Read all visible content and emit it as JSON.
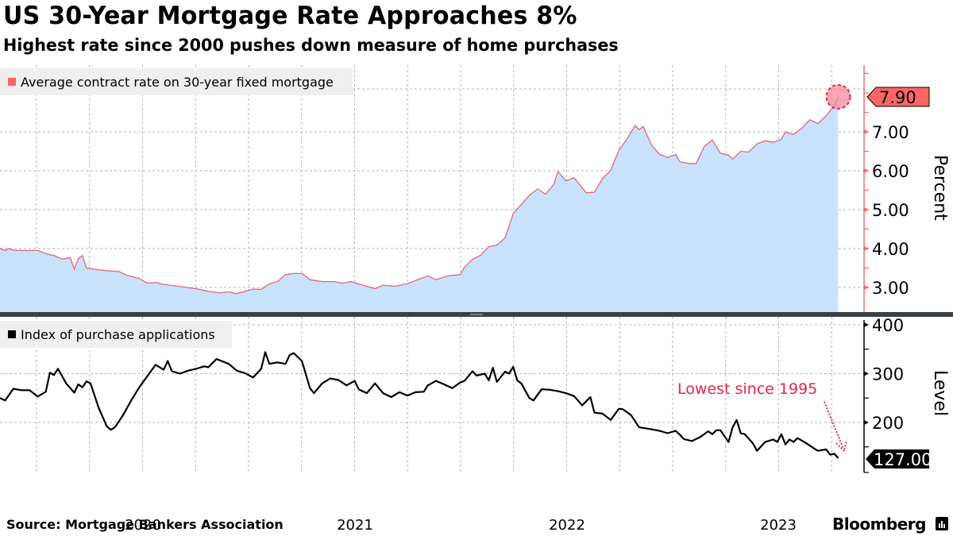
{
  "header": {
    "title": "US 30-Year Mortgage Rate Approaches 8%",
    "subtitle": "Highest rate since 2000 pushes down measure of home purchases"
  },
  "footer": {
    "source": "Source: Mortgage Bankers Association",
    "brand": "Bloomberg"
  },
  "colors": {
    "rate_line": "#e5647a",
    "rate_fill": "#c9e2fb",
    "rate_axis": "#f26b6b",
    "rate_badge": "#fd6565",
    "highlight_circle": "#f78a9c",
    "index_line": "#000000",
    "annotation": "#e8254e"
  },
  "chart_data": [
    {
      "type": "area",
      "title": "Average contract rate on 30-year fixed mortgage",
      "legend": {
        "label": "Average contract rate on 30-year fixed mortgage",
        "placement": "top-left"
      },
      "ylabel": "Percent",
      "ylim": [
        2.4,
        8.6
      ],
      "yticks": [
        "3.00",
        "4.00",
        "5.00",
        "6.00",
        "7.00"
      ],
      "grid": true,
      "x_start": "2019-11",
      "x_end": "2023-10",
      "frequency": "weekly",
      "xticks": [
        "2020",
        "2021",
        "2022",
        "2023"
      ],
      "last_value": 7.9,
      "last_value_label": "7.90",
      "anchors": [
        [
          "2019-11-01",
          4.0
        ],
        [
          "2019-11-08",
          3.95
        ],
        [
          "2019-11-15",
          4.0
        ],
        [
          "2019-11-22",
          3.96
        ],
        [
          "2019-12-06",
          3.95
        ],
        [
          "2019-12-20",
          3.95
        ],
        [
          "2020-01-03",
          3.95
        ],
        [
          "2020-01-17",
          3.87
        ],
        [
          "2020-01-31",
          3.82
        ],
        [
          "2020-02-14",
          3.73
        ],
        [
          "2020-02-28",
          3.77
        ],
        [
          "2020-03-06",
          3.47
        ],
        [
          "2020-03-13",
          3.74
        ],
        [
          "2020-03-20",
          3.82
        ],
        [
          "2020-03-27",
          3.5
        ],
        [
          "2020-04-10",
          3.47
        ],
        [
          "2020-05-01",
          3.43
        ],
        [
          "2020-05-22",
          3.41
        ],
        [
          "2020-06-05",
          3.31
        ],
        [
          "2020-06-26",
          3.23
        ],
        [
          "2020-07-10",
          3.11
        ],
        [
          "2020-07-24",
          3.13
        ],
        [
          "2020-08-07",
          3.08
        ],
        [
          "2020-08-28",
          3.04
        ],
        [
          "2020-09-11",
          3.01
        ],
        [
          "2020-10-02",
          2.97
        ],
        [
          "2020-10-23",
          2.9
        ],
        [
          "2020-11-13",
          2.86
        ],
        [
          "2020-11-27",
          2.89
        ],
        [
          "2020-12-11",
          2.84
        ],
        [
          "2020-12-25",
          2.9
        ],
        [
          "2021-01-08",
          2.96
        ],
        [
          "2021-01-22",
          2.95
        ],
        [
          "2021-02-05",
          3.09
        ],
        [
          "2021-02-19",
          3.15
        ],
        [
          "2021-03-05",
          3.33
        ],
        [
          "2021-03-19",
          3.36
        ],
        [
          "2021-04-02",
          3.36
        ],
        [
          "2021-04-16",
          3.2
        ],
        [
          "2021-05-07",
          3.15
        ],
        [
          "2021-05-28",
          3.15
        ],
        [
          "2021-06-11",
          3.11
        ],
        [
          "2021-06-25",
          3.15
        ],
        [
          "2021-07-09",
          3.09
        ],
        [
          "2021-07-23",
          3.03
        ],
        [
          "2021-08-06",
          2.97
        ],
        [
          "2021-08-20",
          3.06
        ],
        [
          "2021-09-10",
          3.03
        ],
        [
          "2021-10-01",
          3.1
        ],
        [
          "2021-10-22",
          3.22
        ],
        [
          "2021-11-05",
          3.3
        ],
        [
          "2021-11-19",
          3.2
        ],
        [
          "2021-12-10",
          3.3
        ],
        [
          "2021-12-31",
          3.33
        ],
        [
          "2022-01-07",
          3.52
        ],
        [
          "2022-01-21",
          3.72
        ],
        [
          "2022-02-04",
          3.83
        ],
        [
          "2022-02-18",
          4.05
        ],
        [
          "2022-03-04",
          4.09
        ],
        [
          "2022-03-18",
          4.27
        ],
        [
          "2022-04-01",
          4.9
        ],
        [
          "2022-04-15",
          5.13
        ],
        [
          "2022-04-29",
          5.37
        ],
        [
          "2022-05-13",
          5.53
        ],
        [
          "2022-05-27",
          5.4
        ],
        [
          "2022-06-10",
          5.65
        ],
        [
          "2022-06-17",
          5.98
        ],
        [
          "2022-07-01",
          5.74
        ],
        [
          "2022-07-15",
          5.82
        ],
        [
          "2022-08-05",
          5.43
        ],
        [
          "2022-08-19",
          5.45
        ],
        [
          "2022-09-02",
          5.8
        ],
        [
          "2022-09-16",
          6.01
        ],
        [
          "2022-09-30",
          6.52
        ],
        [
          "2022-10-14",
          6.81
        ],
        [
          "2022-10-28",
          7.16
        ],
        [
          "2022-11-04",
          7.06
        ],
        [
          "2022-11-11",
          7.14
        ],
        [
          "2022-11-25",
          6.67
        ],
        [
          "2022-12-09",
          6.42
        ],
        [
          "2022-12-23",
          6.34
        ],
        [
          "2023-01-06",
          6.42
        ],
        [
          "2023-01-13",
          6.23
        ],
        [
          "2023-01-27",
          6.19
        ],
        [
          "2023-02-10",
          6.18
        ],
        [
          "2023-02-24",
          6.62
        ],
        [
          "2023-03-10",
          6.79
        ],
        [
          "2023-03-24",
          6.45
        ],
        [
          "2023-04-07",
          6.4
        ],
        [
          "2023-04-14",
          6.3
        ],
        [
          "2023-04-28",
          6.5
        ],
        [
          "2023-05-12",
          6.48
        ],
        [
          "2023-05-26",
          6.69
        ],
        [
          "2023-06-09",
          6.77
        ],
        [
          "2023-06-23",
          6.73
        ],
        [
          "2023-07-07",
          6.81
        ],
        [
          "2023-07-14",
          7.0
        ],
        [
          "2023-07-28",
          6.93
        ],
        [
          "2023-08-11",
          7.09
        ],
        [
          "2023-08-25",
          7.31
        ],
        [
          "2023-09-08",
          7.21
        ],
        [
          "2023-09-22",
          7.41
        ],
        [
          "2023-10-06",
          7.67
        ],
        [
          "2023-10-13",
          7.9
        ]
      ]
    },
    {
      "type": "line",
      "title": "Index of purchase applications",
      "legend": {
        "label": "Index of purchase applications",
        "placement": "top-left"
      },
      "ylabel": "Level",
      "ylim": [
        100,
        410
      ],
      "yticks": [
        "200",
        "300",
        "400"
      ],
      "grid": true,
      "x_start": "2019-11",
      "x_end": "2023-10",
      "frequency": "weekly",
      "xticks": [
        "2020",
        "2021",
        "2022",
        "2023"
      ],
      "last_value": 127.0,
      "last_value_label": "127.00",
      "annotation": {
        "text": "Lowest since 1995",
        "points_to": "last value"
      },
      "anchors": [
        [
          "2019-11-01",
          250
        ],
        [
          "2019-11-08",
          245
        ],
        [
          "2019-11-22",
          269
        ],
        [
          "2019-12-06",
          266
        ],
        [
          "2019-12-20",
          266
        ],
        [
          "2020-01-03",
          253
        ],
        [
          "2020-01-17",
          263
        ],
        [
          "2020-01-24",
          302
        ],
        [
          "2020-01-31",
          297
        ],
        [
          "2020-02-07",
          310
        ],
        [
          "2020-02-21",
          280
        ],
        [
          "2020-03-06",
          261
        ],
        [
          "2020-03-13",
          278
        ],
        [
          "2020-03-20",
          272
        ],
        [
          "2020-03-27",
          284
        ],
        [
          "2020-04-03",
          280
        ],
        [
          "2020-04-17",
          230
        ],
        [
          "2020-05-01",
          192
        ],
        [
          "2020-05-08",
          185
        ],
        [
          "2020-05-15",
          190
        ],
        [
          "2020-05-29",
          215
        ],
        [
          "2020-06-12",
          245
        ],
        [
          "2020-06-26",
          272
        ],
        [
          "2020-07-10",
          295
        ],
        [
          "2020-07-24",
          318
        ],
        [
          "2020-08-07",
          308
        ],
        [
          "2020-08-14",
          326
        ],
        [
          "2020-08-21",
          305
        ],
        [
          "2020-09-04",
          300
        ],
        [
          "2020-09-18",
          306
        ],
        [
          "2020-10-02",
          310
        ],
        [
          "2020-10-16",
          315
        ],
        [
          "2020-10-23",
          313
        ],
        [
          "2020-11-06",
          330
        ],
        [
          "2020-11-27",
          320
        ],
        [
          "2020-12-11",
          306
        ],
        [
          "2020-12-25",
          301
        ],
        [
          "2021-01-08",
          292
        ],
        [
          "2021-01-22",
          310
        ],
        [
          "2021-01-29",
          344
        ],
        [
          "2021-02-05",
          320
        ],
        [
          "2021-02-19",
          323
        ],
        [
          "2021-03-05",
          320
        ],
        [
          "2021-03-12",
          338
        ],
        [
          "2021-03-19",
          342
        ],
        [
          "2021-04-02",
          326
        ],
        [
          "2021-04-16",
          270
        ],
        [
          "2021-04-23",
          260
        ],
        [
          "2021-05-07",
          280
        ],
        [
          "2021-05-21",
          290
        ],
        [
          "2021-06-04",
          287
        ],
        [
          "2021-06-18",
          276
        ],
        [
          "2021-07-02",
          285
        ],
        [
          "2021-07-09",
          268
        ],
        [
          "2021-07-23",
          260
        ],
        [
          "2021-08-06",
          280
        ],
        [
          "2021-08-20",
          260
        ],
        [
          "2021-09-03",
          252
        ],
        [
          "2021-09-17",
          262
        ],
        [
          "2021-10-01",
          255
        ],
        [
          "2021-10-15",
          262
        ],
        [
          "2021-10-29",
          263
        ],
        [
          "2021-11-05",
          276
        ],
        [
          "2021-11-19",
          285
        ],
        [
          "2021-12-03",
          278
        ],
        [
          "2021-12-17",
          270
        ],
        [
          "2021-12-31",
          282
        ],
        [
          "2022-01-07",
          285
        ],
        [
          "2022-01-21",
          305
        ],
        [
          "2022-01-28",
          296
        ],
        [
          "2022-02-11",
          300
        ],
        [
          "2022-02-18",
          286
        ],
        [
          "2022-02-25",
          312
        ],
        [
          "2022-03-04",
          283
        ],
        [
          "2022-03-18",
          304
        ],
        [
          "2022-03-25",
          300
        ],
        [
          "2022-04-01",
          314
        ],
        [
          "2022-04-08",
          286
        ],
        [
          "2022-04-15",
          280
        ],
        [
          "2022-04-29",
          250
        ],
        [
          "2022-05-06",
          245
        ],
        [
          "2022-05-20",
          268
        ],
        [
          "2022-06-03",
          267
        ],
        [
          "2022-06-17",
          264
        ],
        [
          "2022-07-01",
          260
        ],
        [
          "2022-07-15",
          254
        ],
        [
          "2022-07-29",
          235
        ],
        [
          "2022-08-12",
          252
        ],
        [
          "2022-08-19",
          220
        ],
        [
          "2022-09-02",
          218
        ],
        [
          "2022-09-16",
          205
        ],
        [
          "2022-09-30",
          228
        ],
        [
          "2022-10-07",
          227
        ],
        [
          "2022-10-21",
          215
        ],
        [
          "2022-11-04",
          190
        ],
        [
          "2022-11-25",
          186
        ],
        [
          "2022-12-09",
          183
        ],
        [
          "2022-12-23",
          178
        ],
        [
          "2023-01-06",
          183
        ],
        [
          "2023-01-13",
          175
        ],
        [
          "2023-01-20",
          166
        ],
        [
          "2023-02-03",
          162
        ],
        [
          "2023-02-17",
          170
        ],
        [
          "2023-03-03",
          182
        ],
        [
          "2023-03-10",
          176
        ],
        [
          "2023-03-17",
          184
        ],
        [
          "2023-03-24",
          184
        ],
        [
          "2023-04-07",
          160
        ],
        [
          "2023-04-14",
          190
        ],
        [
          "2023-04-21",
          205
        ],
        [
          "2023-04-28",
          178
        ],
        [
          "2023-05-05",
          176
        ],
        [
          "2023-05-19",
          157
        ],
        [
          "2023-05-26",
          142
        ],
        [
          "2023-06-09",
          160
        ],
        [
          "2023-06-23",
          165
        ],
        [
          "2023-06-30",
          160
        ],
        [
          "2023-07-07",
          176
        ],
        [
          "2023-07-14",
          155
        ],
        [
          "2023-07-21",
          165
        ],
        [
          "2023-07-28",
          160
        ],
        [
          "2023-08-04",
          168
        ],
        [
          "2023-08-18",
          158
        ],
        [
          "2023-09-01",
          147
        ],
        [
          "2023-09-08",
          142
        ],
        [
          "2023-09-22",
          145
        ],
        [
          "2023-09-29",
          134
        ],
        [
          "2023-10-06",
          136
        ],
        [
          "2023-10-13",
          127
        ]
      ]
    }
  ]
}
